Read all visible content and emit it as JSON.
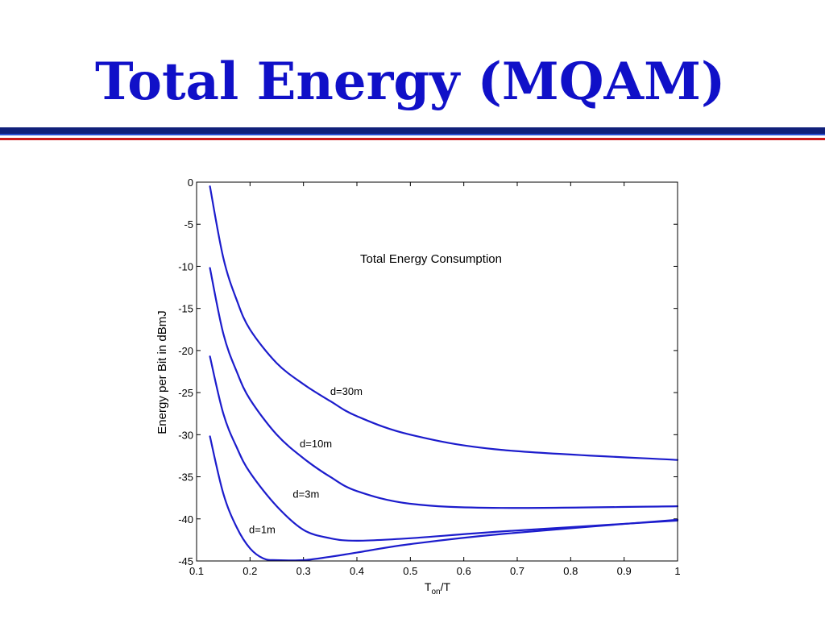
{
  "slide": {
    "title": "Total Energy (MQAM)",
    "colors": {
      "title": "#1010c8",
      "rule_navy": "#10207a",
      "rule_blue": "#2a4fd0",
      "rule_red": "#cc1a1a",
      "curve": "#1c1ccc"
    }
  },
  "chart_data": {
    "type": "line",
    "title": "Total Energy Consumption",
    "xlabel_main": "T",
    "xlabel_sub": "on",
    "xlabel_tail": "/T",
    "ylabel": "Energy per Bit in dBmJ",
    "xlim": [
      0.1,
      1
    ],
    "ylim": [
      -45,
      0
    ],
    "xticks": [
      0.1,
      0.2,
      0.3,
      0.4,
      0.5,
      0.6,
      0.7,
      0.8,
      0.9,
      1
    ],
    "xtick_labels": [
      "0.1",
      "0.2",
      "0.3",
      "0.4",
      "0.5",
      "0.6",
      "0.7",
      "0.8",
      "0.9",
      "1"
    ],
    "yticks": [
      0,
      -5,
      -10,
      -15,
      -20,
      -25,
      -30,
      -35,
      -40,
      -45
    ],
    "ytick_labels": [
      "0",
      "-5",
      "-10",
      "-15",
      "-20",
      "-25",
      "-30",
      "-35",
      "-40",
      "-45"
    ],
    "grid": false,
    "series": [
      {
        "name": "d=30m",
        "x": [
          0.125,
          0.15,
          0.175,
          0.2,
          0.25,
          0.3,
          0.35,
          0.4,
          0.5,
          0.67,
          1.0
        ],
        "y": [
          -0.5,
          -9,
          -14,
          -17.5,
          -21.5,
          -24,
          -26,
          -27.8,
          -30,
          -31.8,
          -33
        ]
      },
      {
        "name": "d=10m",
        "x": [
          0.125,
          0.15,
          0.175,
          0.2,
          0.25,
          0.3,
          0.35,
          0.4,
          0.5,
          0.67,
          1.0
        ],
        "y": [
          -10.2,
          -18,
          -22.5,
          -25.8,
          -30,
          -32.8,
          -35,
          -36.7,
          -38.2,
          -38.7,
          -38.5
        ]
      },
      {
        "name": "d=3m",
        "x": [
          0.125,
          0.15,
          0.175,
          0.2,
          0.25,
          0.3,
          0.35,
          0.4,
          0.5,
          0.67,
          1.0
        ],
        "y": [
          -20.7,
          -27.5,
          -31.5,
          -34.5,
          -38.5,
          -41.3,
          -42.3,
          -42.6,
          -42.3,
          -41.5,
          -40.2
        ]
      },
      {
        "name": "d=1m",
        "x": [
          0.125,
          0.15,
          0.175,
          0.2,
          0.225,
          0.25,
          0.3,
          0.35,
          0.4,
          0.5,
          0.67,
          1.0
        ],
        "y": [
          -30.2,
          -37,
          -41,
          -43.5,
          -44.7,
          -45,
          -44.9,
          -44.5,
          -44,
          -43,
          -41.8,
          -40.1
        ]
      }
    ]
  }
}
